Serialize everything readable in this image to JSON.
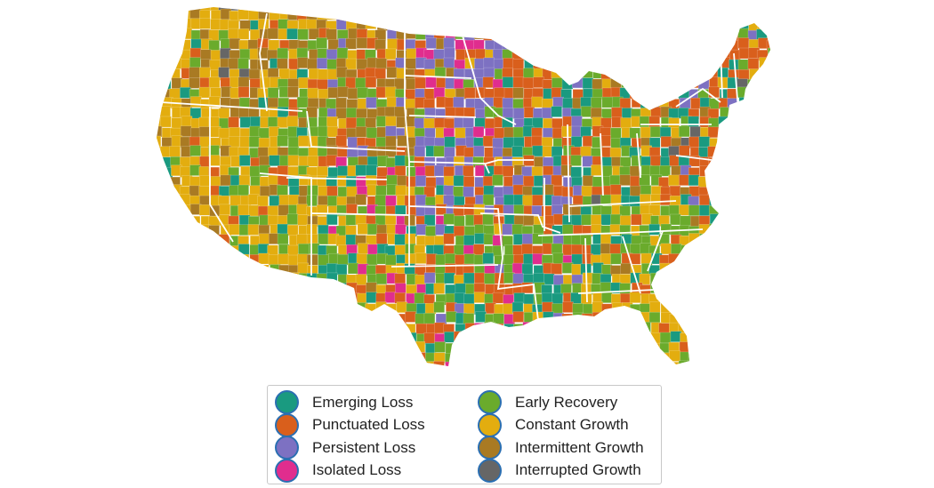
{
  "legend": {
    "items": [
      {
        "label": "Emerging Loss",
        "color": "#1a9a80"
      },
      {
        "label": "Punctuated Loss",
        "color": "#d95f1c"
      },
      {
        "label": "Persistent Loss",
        "color": "#7d71c2"
      },
      {
        "label": "Isolated Loss",
        "color": "#e02d8e"
      },
      {
        "label": "Early Recovery",
        "color": "#6aab2c"
      },
      {
        "label": "Constant Growth",
        "color": "#e3ad0f"
      },
      {
        "label": "Intermittent Growth",
        "color": "#a97a23"
      },
      {
        "label": "Interrupted Growth",
        "color": "#666666"
      }
    ]
  },
  "map": {
    "region": "Contiguous United States",
    "units": "counties",
    "state_borders_color": "#ffffff"
  }
}
